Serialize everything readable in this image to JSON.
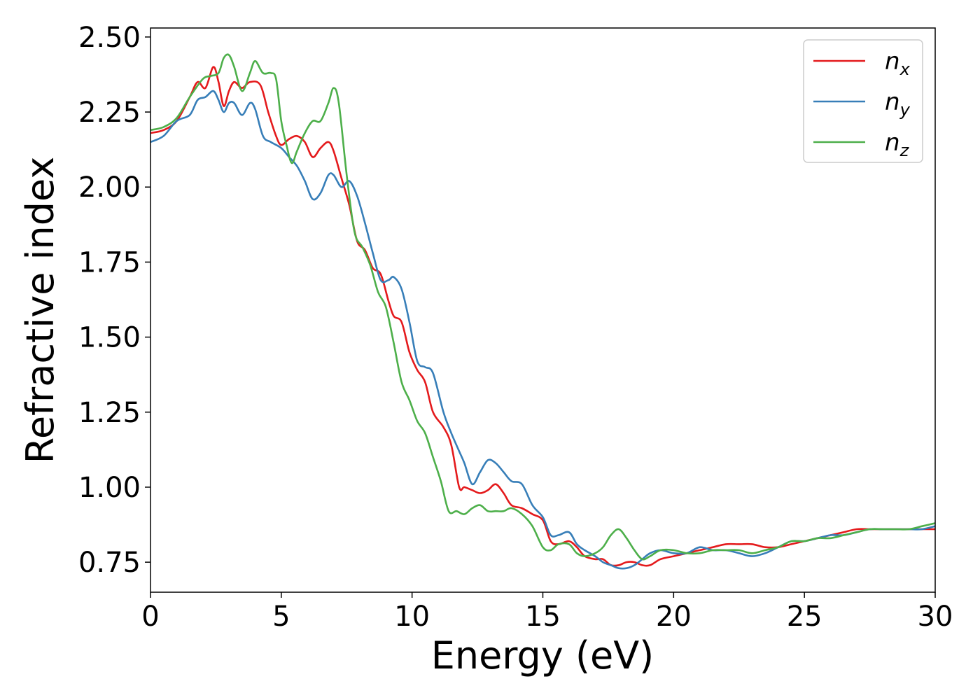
{
  "chart_data": {
    "type": "line",
    "xlabel": "Energy (eV)",
    "ylabel": "Refractive index",
    "xlim": [
      0,
      30
    ],
    "ylim": [
      0.65,
      2.53
    ],
    "xticks": [
      0,
      5,
      10,
      15,
      20,
      25,
      30
    ],
    "xtick_labels": [
      "0",
      "5",
      "10",
      "15",
      "20",
      "25",
      "30"
    ],
    "yticks": [
      0.75,
      1.0,
      1.25,
      1.5,
      1.75,
      2.0,
      2.25,
      2.5
    ],
    "ytick_labels": [
      "0.75",
      "1.00",
      "1.25",
      "1.50",
      "1.75",
      "2.00",
      "2.25",
      "2.50"
    ],
    "grid": false,
    "legend_position": "top-right",
    "series": [
      {
        "name": "n",
        "subscript": "x",
        "color": "#e41a1c",
        "x": [
          0,
          0.5,
          1.0,
          1.5,
          1.8,
          2.1,
          2.4,
          2.6,
          2.8,
          3.0,
          3.2,
          3.5,
          3.8,
          4.2,
          4.5,
          4.8,
          5.0,
          5.3,
          5.6,
          5.9,
          6.2,
          6.5,
          6.8,
          7.0,
          7.3,
          7.6,
          7.9,
          8.2,
          8.5,
          8.8,
          9.1,
          9.3,
          9.6,
          9.9,
          10.2,
          10.5,
          10.8,
          11.2,
          11.5,
          11.8,
          12.0,
          12.3,
          12.6,
          12.9,
          13.2,
          13.5,
          13.8,
          14.2,
          14.6,
          15.0,
          15.3,
          15.6,
          16.0,
          16.3,
          16.6,
          17.0,
          17.3,
          17.6,
          17.9,
          18.2,
          18.5,
          18.8,
          19.1,
          19.5,
          20.0,
          20.5,
          21.0,
          21.5,
          22.0,
          22.5,
          23.0,
          23.5,
          24.0,
          24.5,
          25.0,
          25.5,
          26.0,
          26.5,
          27.0,
          27.5,
          28.0,
          28.5,
          29.0,
          29.5,
          30.0
        ],
        "y": [
          2.18,
          2.19,
          2.22,
          2.3,
          2.35,
          2.33,
          2.4,
          2.35,
          2.27,
          2.32,
          2.35,
          2.33,
          2.35,
          2.34,
          2.25,
          2.17,
          2.14,
          2.16,
          2.17,
          2.15,
          2.1,
          2.13,
          2.15,
          2.12,
          2.03,
          1.94,
          1.82,
          1.79,
          1.73,
          1.71,
          1.62,
          1.57,
          1.55,
          1.45,
          1.39,
          1.35,
          1.25,
          1.2,
          1.14,
          1.0,
          1.0,
          0.99,
          0.98,
          0.99,
          1.01,
          0.98,
          0.94,
          0.93,
          0.91,
          0.89,
          0.82,
          0.81,
          0.82,
          0.8,
          0.77,
          0.76,
          0.76,
          0.74,
          0.74,
          0.75,
          0.75,
          0.74,
          0.74,
          0.76,
          0.77,
          0.78,
          0.79,
          0.8,
          0.81,
          0.81,
          0.81,
          0.8,
          0.8,
          0.81,
          0.82,
          0.83,
          0.84,
          0.85,
          0.86,
          0.86,
          0.86,
          0.86,
          0.86,
          0.86,
          0.86
        ]
      },
      {
        "name": "n",
        "subscript": "y",
        "color": "#377eb8",
        "x": [
          0,
          0.5,
          1.0,
          1.5,
          1.8,
          2.1,
          2.4,
          2.6,
          2.8,
          3.0,
          3.2,
          3.5,
          3.8,
          4.0,
          4.3,
          4.6,
          5.0,
          5.3,
          5.6,
          5.9,
          6.2,
          6.5,
          6.8,
          7.0,
          7.3,
          7.6,
          7.9,
          8.2,
          8.5,
          8.8,
          9.1,
          9.3,
          9.6,
          9.9,
          10.2,
          10.5,
          10.8,
          11.2,
          11.5,
          11.8,
          12.0,
          12.3,
          12.6,
          12.9,
          13.2,
          13.5,
          13.8,
          14.2,
          14.6,
          15.0,
          15.3,
          15.6,
          16.0,
          16.3,
          16.6,
          17.0,
          17.3,
          17.6,
          17.9,
          18.2,
          18.5,
          18.8,
          19.1,
          19.5,
          20.0,
          20.5,
          21.0,
          21.5,
          22.0,
          22.5,
          23.0,
          23.5,
          24.0,
          24.5,
          25.0,
          25.5,
          26.0,
          26.5,
          27.0,
          27.5,
          28.0,
          28.5,
          29.0,
          29.5,
          30.0
        ],
        "y": [
          2.15,
          2.17,
          2.22,
          2.24,
          2.29,
          2.3,
          2.32,
          2.29,
          2.25,
          2.28,
          2.28,
          2.24,
          2.28,
          2.26,
          2.17,
          2.15,
          2.13,
          2.1,
          2.07,
          2.02,
          1.96,
          1.98,
          2.04,
          2.04,
          2.0,
          2.02,
          1.97,
          1.88,
          1.78,
          1.69,
          1.69,
          1.7,
          1.66,
          1.55,
          1.42,
          1.4,
          1.38,
          1.25,
          1.18,
          1.12,
          1.08,
          1.01,
          1.05,
          1.09,
          1.08,
          1.05,
          1.02,
          1.01,
          0.94,
          0.9,
          0.84,
          0.84,
          0.85,
          0.81,
          0.79,
          0.77,
          0.75,
          0.74,
          0.73,
          0.73,
          0.74,
          0.76,
          0.78,
          0.79,
          0.78,
          0.78,
          0.8,
          0.79,
          0.79,
          0.78,
          0.77,
          0.78,
          0.8,
          0.82,
          0.82,
          0.83,
          0.84,
          0.84,
          0.85,
          0.86,
          0.86,
          0.86,
          0.86,
          0.86,
          0.87
        ]
      },
      {
        "name": "n",
        "subscript": "z",
        "color": "#4daf4a",
        "x": [
          0,
          0.5,
          1.0,
          1.5,
          2.0,
          2.3,
          2.6,
          2.8,
          3.0,
          3.2,
          3.5,
          3.8,
          4.0,
          4.3,
          4.6,
          4.8,
          5.0,
          5.2,
          5.4,
          5.6,
          5.9,
          6.2,
          6.5,
          6.8,
          7.0,
          7.2,
          7.5,
          7.8,
          8.1,
          8.4,
          8.7,
          9.0,
          9.3,
          9.6,
          9.9,
          10.2,
          10.5,
          10.8,
          11.1,
          11.4,
          11.7,
          12.0,
          12.3,
          12.6,
          12.9,
          13.2,
          13.5,
          13.8,
          14.2,
          14.6,
          15.0,
          15.3,
          15.6,
          16.0,
          16.3,
          16.6,
          17.0,
          17.3,
          17.6,
          17.9,
          18.2,
          18.5,
          18.8,
          19.1,
          19.5,
          20.0,
          20.5,
          21.0,
          21.5,
          22.0,
          22.5,
          23.0,
          23.5,
          24.0,
          24.5,
          25.0,
          25.5,
          26.0,
          26.5,
          27.0,
          27.5,
          28.0,
          28.5,
          29.0,
          29.5,
          30.0
        ],
        "y": [
          2.19,
          2.2,
          2.23,
          2.3,
          2.36,
          2.37,
          2.38,
          2.43,
          2.44,
          2.4,
          2.32,
          2.38,
          2.42,
          2.38,
          2.38,
          2.36,
          2.22,
          2.14,
          2.08,
          2.12,
          2.18,
          2.22,
          2.22,
          2.28,
          2.33,
          2.28,
          2.04,
          1.85,
          1.8,
          1.74,
          1.65,
          1.6,
          1.48,
          1.35,
          1.29,
          1.22,
          1.18,
          1.1,
          1.02,
          0.92,
          0.92,
          0.91,
          0.93,
          0.94,
          0.92,
          0.92,
          0.92,
          0.93,
          0.91,
          0.87,
          0.8,
          0.79,
          0.81,
          0.81,
          0.78,
          0.77,
          0.78,
          0.8,
          0.84,
          0.86,
          0.83,
          0.79,
          0.76,
          0.77,
          0.79,
          0.79,
          0.78,
          0.78,
          0.79,
          0.79,
          0.79,
          0.78,
          0.79,
          0.8,
          0.82,
          0.82,
          0.83,
          0.83,
          0.84,
          0.85,
          0.86,
          0.86,
          0.86,
          0.86,
          0.87,
          0.88
        ]
      }
    ]
  }
}
